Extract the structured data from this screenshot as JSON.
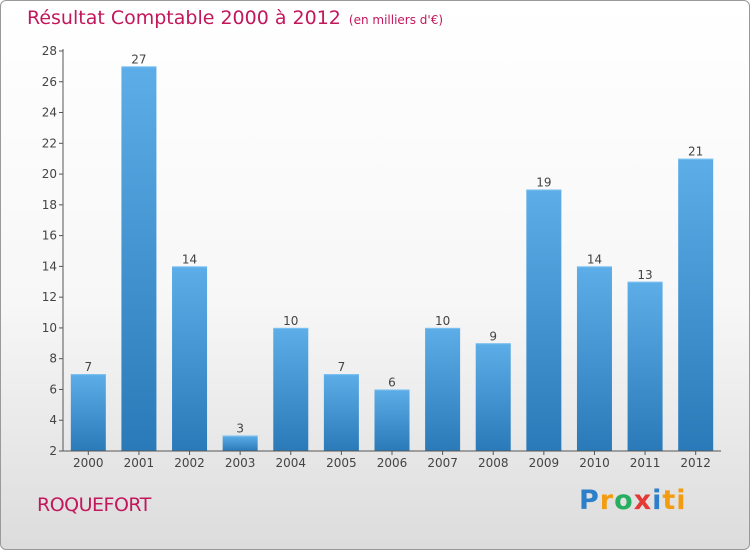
{
  "header": {
    "title": "Résultat Comptable 2000 à 2012",
    "subtitle": "(en milliers d'€)"
  },
  "location": "ROQUEFORT",
  "logo": {
    "text": "Proxiti",
    "letters": [
      "P",
      "r",
      "o",
      "x",
      "i",
      "ti"
    ]
  },
  "colors": {
    "title": "#c2185b",
    "bar_top": "#5dade8",
    "bar_bottom": "#2a7ab9",
    "axis": "#555555"
  },
  "chart_data": {
    "type": "bar",
    "title": "Résultat Comptable 2000 à 2012",
    "xlabel": "",
    "ylabel": "",
    "categories": [
      "2000",
      "2001",
      "2002",
      "2003",
      "2004",
      "2005",
      "2006",
      "2007",
      "2008",
      "2009",
      "2010",
      "2011",
      "2012"
    ],
    "values": [
      7,
      27,
      14,
      3,
      10,
      7,
      6,
      10,
      9,
      19,
      14,
      13,
      21
    ],
    "ylim": [
      2,
      28
    ],
    "yticks": [
      2,
      4,
      6,
      8,
      10,
      12,
      14,
      16,
      18,
      20,
      22,
      24,
      26,
      28
    ],
    "grid": false,
    "legend": "none"
  }
}
